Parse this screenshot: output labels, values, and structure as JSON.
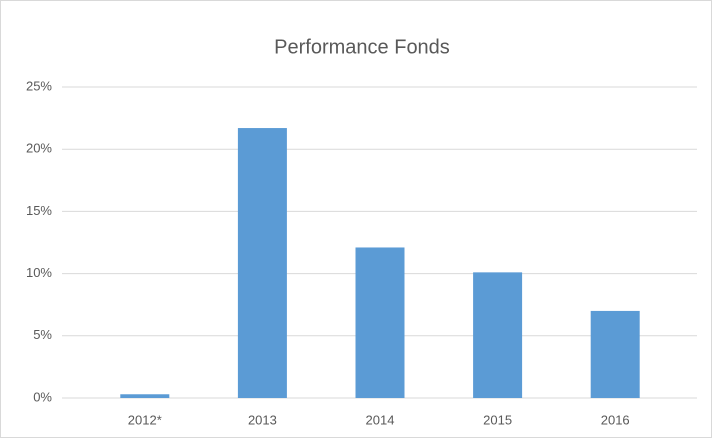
{
  "chart_data": {
    "type": "bar",
    "title": "Performance Fonds",
    "categories": [
      "2012*",
      "2013",
      "2014",
      "2015",
      "2016"
    ],
    "values": [
      0.3,
      21.7,
      12.1,
      10.1,
      7.0
    ],
    "color": "#5b9bd5",
    "ylim": [
      0,
      25
    ],
    "yticks": [
      {
        "value": 0,
        "label": "0%"
      },
      {
        "value": 5,
        "label": "5%"
      },
      {
        "value": 10,
        "label": "10%"
      },
      {
        "value": 15,
        "label": "15%"
      },
      {
        "value": 20,
        "label": "20%"
      },
      {
        "value": 25,
        "label": "25%"
      }
    ],
    "grid": true
  }
}
